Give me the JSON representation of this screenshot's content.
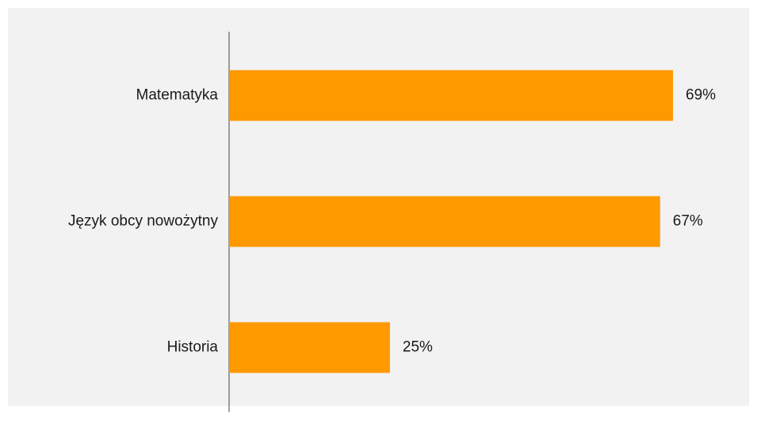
{
  "chart_data": {
    "type": "hbar",
    "categories": [
      "Matematyka",
      "Język obcy nowożytny",
      "Historia"
    ],
    "values": [
      69,
      67,
      25
    ],
    "value_labels": [
      "69%",
      "67%",
      "25%"
    ],
    "color": "#ff9900"
  }
}
